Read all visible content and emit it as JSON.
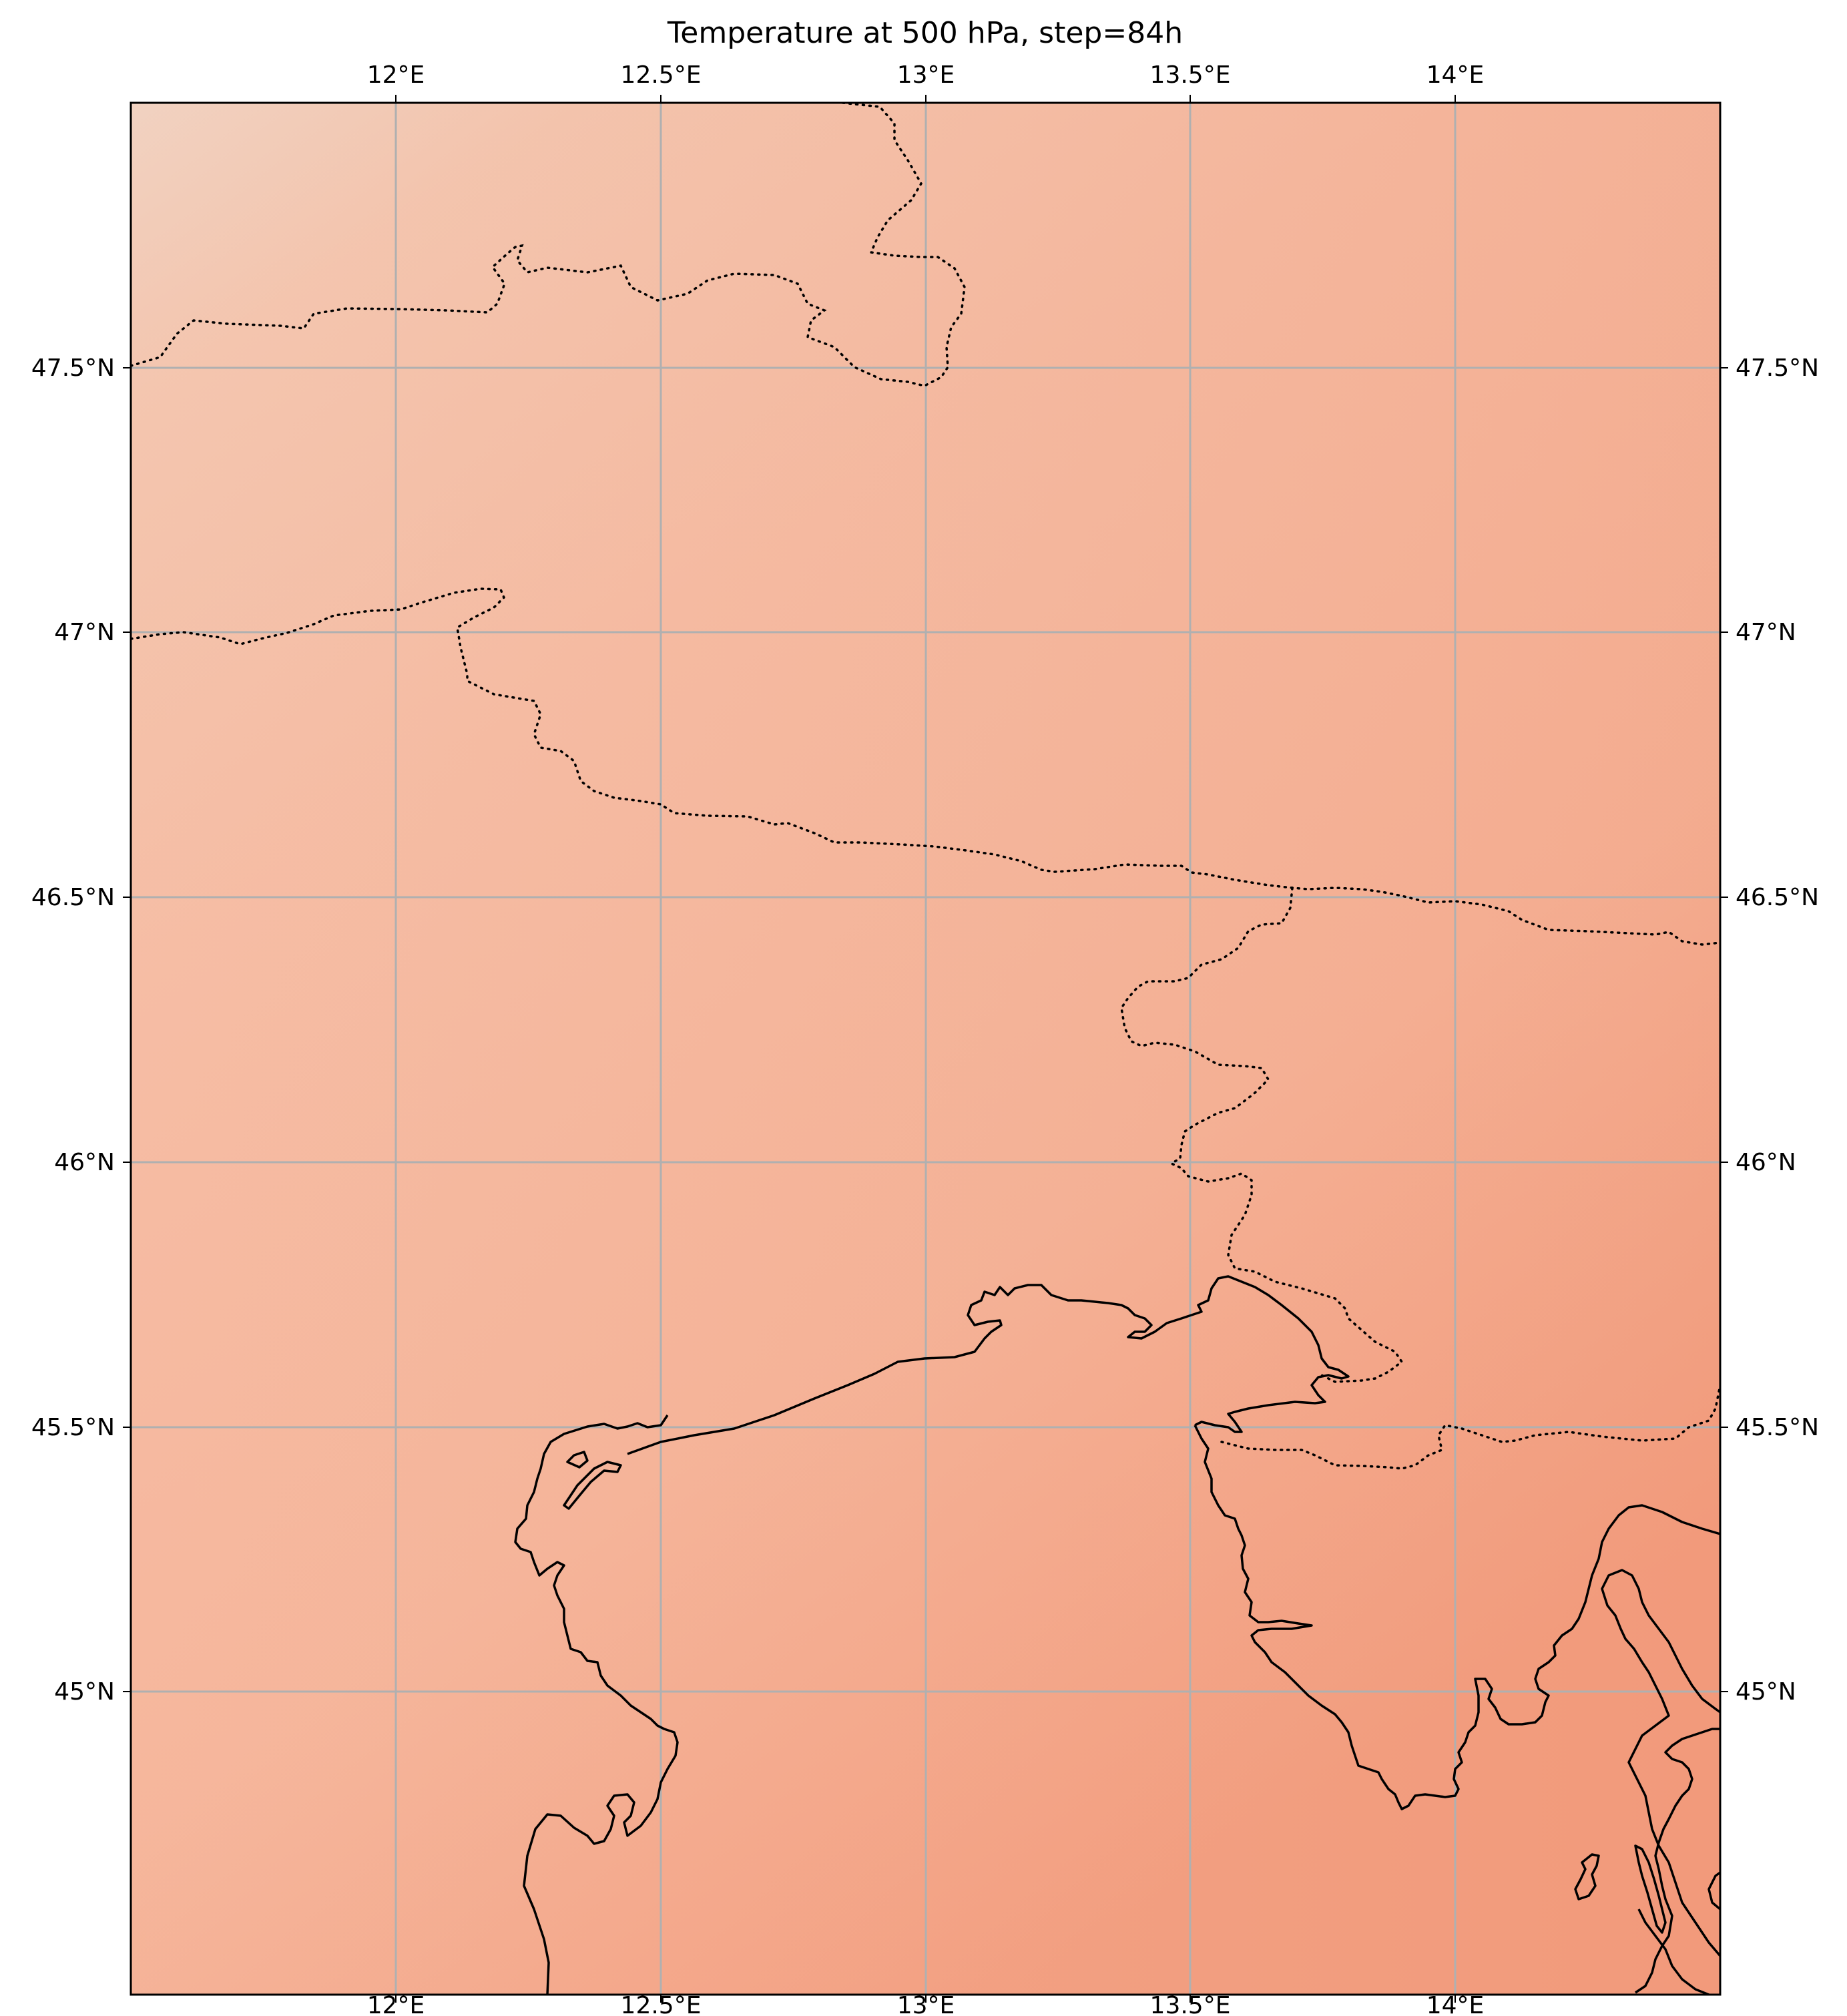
{
  "map": {
    "title": "Temperature at 500 hPa, step=84h",
    "lon_ticks": [
      "12°E",
      "12.5°E",
      "13°E",
      "13.5°E",
      "14°E"
    ],
    "lat_ticks": [
      "47.5°N",
      "47°N",
      "46.5°N",
      "46°N",
      "45.5°N",
      "45°N"
    ],
    "lon_values": [
      12.0,
      12.5,
      13.0,
      13.5,
      14.0
    ],
    "lat_values": [
      47.5,
      47.0,
      46.5,
      46.0,
      45.5,
      45.0
    ],
    "extent": {
      "lon_min": 11.5,
      "lon_max": 14.5,
      "lat_min": 44.5,
      "lat_max": 48.0
    },
    "field": {
      "variable": "Temperature",
      "level": "500 hPa",
      "step": "84h",
      "color_light": "#f0cebb",
      "color_mid": "#f5b89e",
      "color_dark": "#f39c7c"
    },
    "layers": {
      "coastlines": "solid black lines",
      "borders": "dotted black lines",
      "gridlines": "#b0b0b0"
    }
  }
}
